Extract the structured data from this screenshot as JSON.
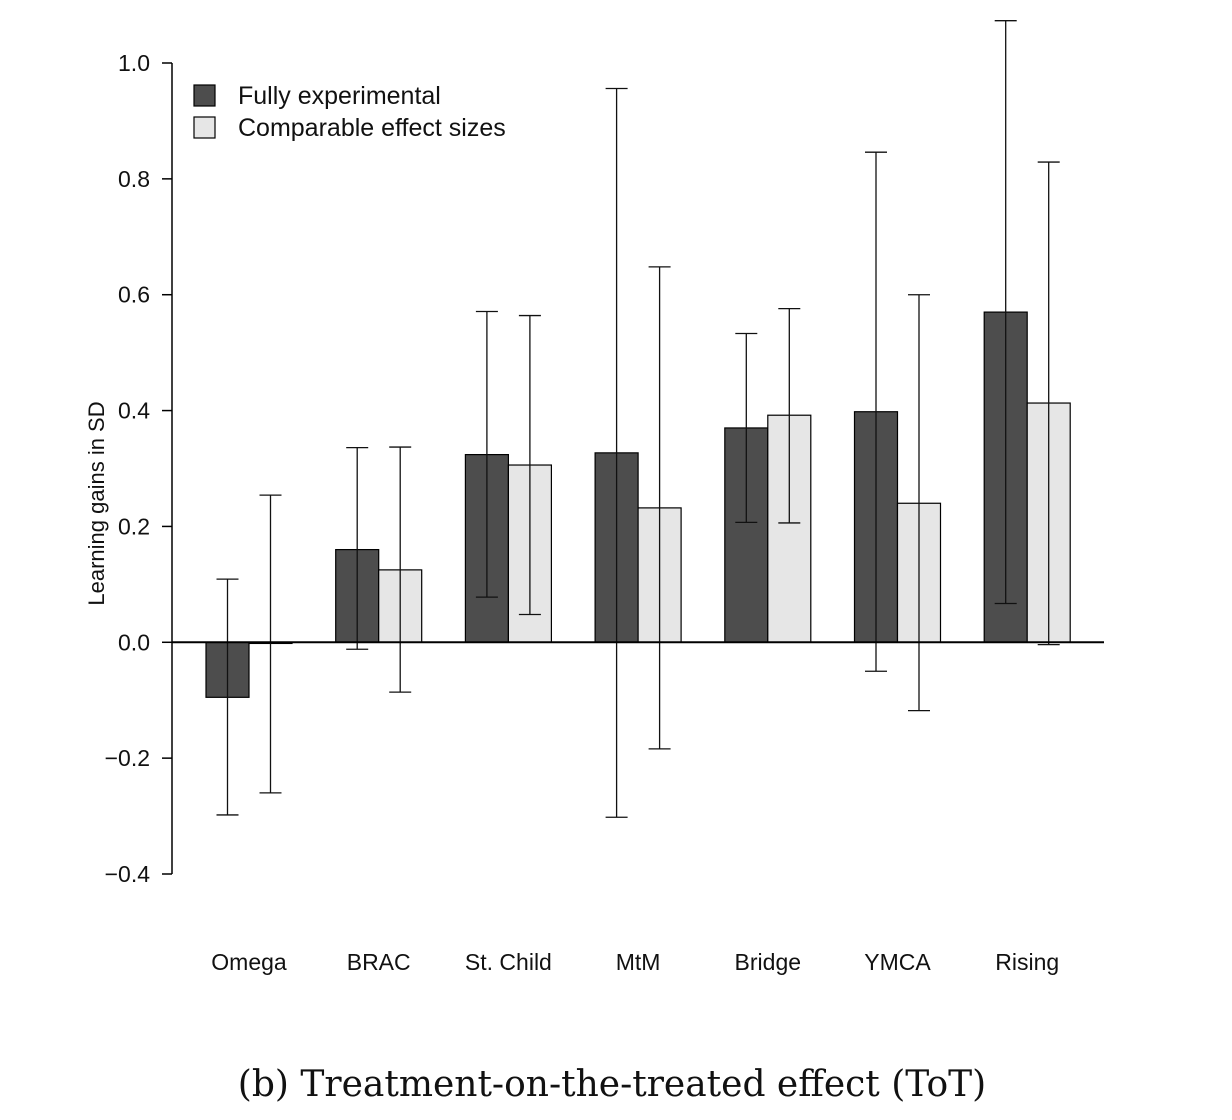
{
  "caption": "(b) Treatment-on-the-treated effect (ToT)",
  "chart_data": {
    "type": "bar",
    "title": "",
    "xlabel": "",
    "ylabel": "Learning gains in SD",
    "ylim": [
      -0.4,
      1.0
    ],
    "yticks": [
      -0.4,
      -0.2,
      0.0,
      0.2,
      0.4,
      0.6,
      0.8,
      1.0
    ],
    "ytick_labels": [
      "−0.4",
      "−0.2",
      "0.0",
      "0.2",
      "0.4",
      "0.6",
      "0.8",
      "1.0"
    ],
    "categories": [
      "Omega",
      "BRAC",
      "St. Child",
      "MtM",
      "Bridge",
      "YMCA",
      "Rising"
    ],
    "legend_position": "top-left",
    "series": [
      {
        "name": "Fully experimental",
        "color": "#4d4d4d",
        "values": [
          -0.095,
          0.16,
          0.324,
          0.327,
          0.37,
          0.398,
          0.57
        ],
        "ci_low": [
          -0.298,
          -0.012,
          0.078,
          -0.302,
          0.207,
          -0.05,
          0.067
        ],
        "ci_high": [
          0.109,
          0.336,
          0.571,
          0.956,
          0.533,
          0.846,
          1.073
        ]
      },
      {
        "name": "Comparable effect sizes",
        "color": "#e6e6e6",
        "values": [
          -0.002,
          0.125,
          0.306,
          0.232,
          0.392,
          0.24,
          0.413
        ],
        "ci_low": [
          -0.26,
          -0.086,
          0.048,
          -0.184,
          0.206,
          -0.118,
          -0.004
        ],
        "ci_high": [
          0.254,
          0.337,
          0.564,
          0.648,
          0.576,
          0.6,
          0.829
        ]
      }
    ]
  }
}
